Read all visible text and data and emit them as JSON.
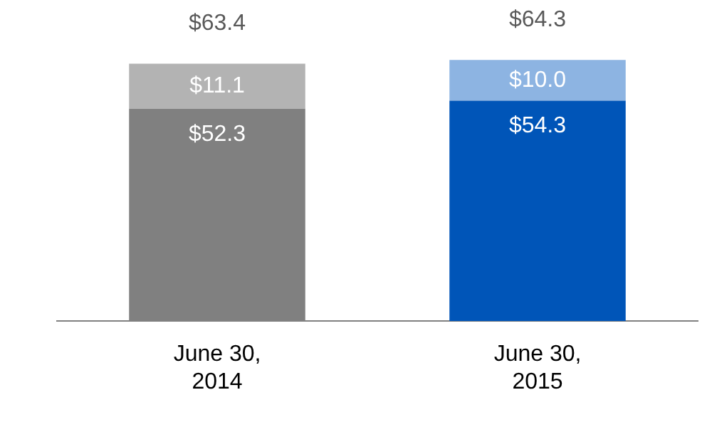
{
  "chart_data": {
    "type": "bar",
    "stacked": true,
    "categories": [
      "June 30, 2014",
      "June 30, 2015"
    ],
    "series": [
      {
        "colors": [
          "#808080",
          "#0055b8"
        ],
        "values": [
          52.3,
          54.3
        ],
        "value_labels": [
          "$52.3",
          "$54.3"
        ]
      },
      {
        "colors": [
          "#b3b3b3",
          "#8db4e2"
        ],
        "values": [
          11.1,
          10.0
        ],
        "value_labels": [
          "$11.1",
          "$10.0"
        ]
      }
    ],
    "totals": [
      "$63.4",
      "$64.3"
    ],
    "grid": false,
    "legend": false
  }
}
